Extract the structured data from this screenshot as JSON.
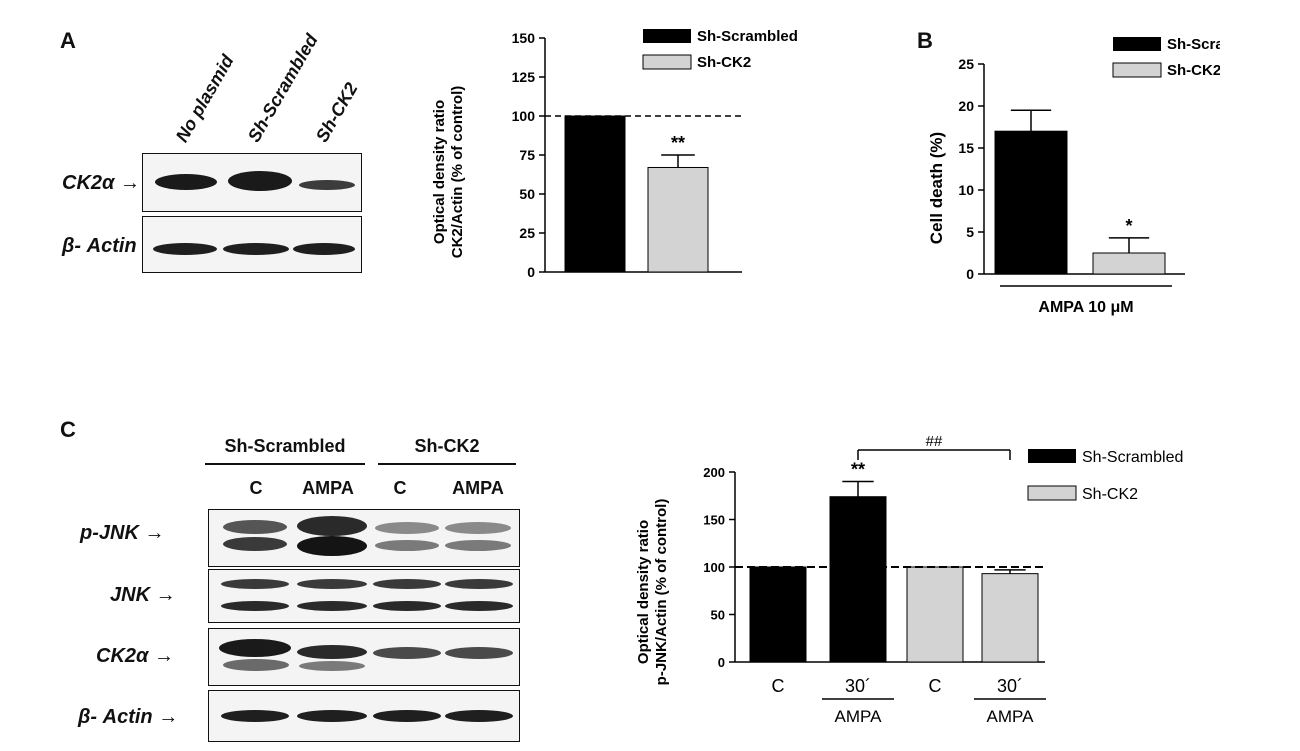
{
  "panels": {
    "a": "A",
    "b": "B",
    "c": "C"
  },
  "blot_a": {
    "lanes": [
      "No plasmid",
      "Sh-Scrambled",
      "Sh-CK2"
    ],
    "rows": [
      "CK2α",
      "β- Actin"
    ],
    "arrow": "→"
  },
  "blot_c": {
    "groups": [
      "Sh-Scrambled",
      "Sh-CK2"
    ],
    "lanes": [
      "C",
      "AMPA",
      "C",
      "AMPA"
    ],
    "rows": [
      "p-JNK",
      "JNK",
      "CK2α",
      "β- Actin"
    ],
    "arrow": "→"
  },
  "chart_data": [
    {
      "id": "A",
      "type": "bar",
      "ylabel": "Optical density ratio",
      "ylabel2": "CK2/Actin (% of control)",
      "ylim": [
        0,
        150
      ],
      "yticks": [
        0,
        25,
        50,
        75,
        100,
        125,
        150
      ],
      "reference_line": 100,
      "series": [
        {
          "name": "Sh-Scrambled",
          "values": [
            100
          ],
          "error": [
            0
          ],
          "color": "#000000"
        },
        {
          "name": "Sh-CK2",
          "values": [
            67
          ],
          "error": [
            8
          ],
          "color": "#d3d3d3",
          "annotation": "**"
        }
      ]
    },
    {
      "id": "B",
      "type": "bar",
      "ylabel": "Cell death (%)",
      "xlabel": "AMPA 10 μM",
      "ylim": [
        0,
        25
      ],
      "yticks": [
        0,
        5,
        10,
        15,
        20,
        25
      ],
      "series": [
        {
          "name": "Sh-Scrambled",
          "values": [
            17
          ],
          "error": [
            2.5
          ],
          "color": "#000000"
        },
        {
          "name": "Sh-CK2",
          "values": [
            2.5
          ],
          "error": [
            1.8
          ],
          "color": "#d3d3d3",
          "annotation": "*"
        }
      ]
    },
    {
      "id": "C",
      "type": "bar",
      "ylabel": "Optical density ratio",
      "ylabel2": "p-JNK/Actin (% of control)",
      "ylim": [
        0,
        200
      ],
      "yticks": [
        0,
        50,
        100,
        150,
        200
      ],
      "reference_line": 100,
      "categories": [
        "C",
        "30´",
        "C",
        "30´"
      ],
      "category_sublabels": [
        "",
        "AMPA",
        "",
        "AMPA"
      ],
      "bars": [
        {
          "series": "Sh-Scrambled",
          "value": 100,
          "error": 0,
          "color": "#000000"
        },
        {
          "series": "Sh-Scrambled",
          "value": 174,
          "error": 16,
          "color": "#000000",
          "annotation": "**"
        },
        {
          "series": "Sh-CK2",
          "value": 100,
          "error": 0,
          "color": "#d3d3d3"
        },
        {
          "series": "Sh-CK2",
          "value": 93,
          "error": 4,
          "color": "#d3d3d3"
        }
      ],
      "bracket_label": "##",
      "legend": [
        {
          "name": "Sh-Scrambled",
          "color": "#000000"
        },
        {
          "name": "Sh-CK2",
          "color": "#d3d3d3"
        }
      ]
    }
  ]
}
